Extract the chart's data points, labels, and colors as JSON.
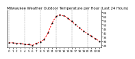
{
  "title": "Milwaukee Weather Outdoor Temperature per Hour (Last 24 Hours)",
  "hours": [
    0,
    1,
    2,
    3,
    4,
    5,
    6,
    7,
    8,
    9,
    10,
    11,
    12,
    13,
    14,
    15,
    16,
    17,
    18,
    19,
    20,
    21,
    22,
    23
  ],
  "temps": [
    28,
    28,
    27,
    27,
    26,
    26,
    25,
    27,
    29,
    32,
    40,
    52,
    60,
    62,
    61,
    58,
    54,
    50,
    46,
    42,
    39,
    36,
    33,
    30
  ],
  "line_color": "#ff0000",
  "marker_color": "#000000",
  "bg_color": "#ffffff",
  "grid_color": "#888888",
  "title_color": "#000000",
  "ylim": [
    22,
    68
  ],
  "ytick_values": [
    25,
    30,
    35,
    40,
    45,
    50,
    55,
    60,
    65
  ],
  "xtick_values": [
    0,
    1,
    2,
    3,
    4,
    5,
    6,
    7,
    8,
    9,
    10,
    11,
    12,
    13,
    14,
    15,
    16,
    17,
    18,
    19,
    20,
    21,
    22,
    23
  ],
  "grid_xticks": [
    0,
    4,
    8,
    12,
    16,
    20
  ],
  "xlabel_fontsize": 3.0,
  "ylabel_fontsize": 3.0,
  "title_fontsize": 3.8,
  "linewidth": 0.7,
  "markersize": 1.0
}
